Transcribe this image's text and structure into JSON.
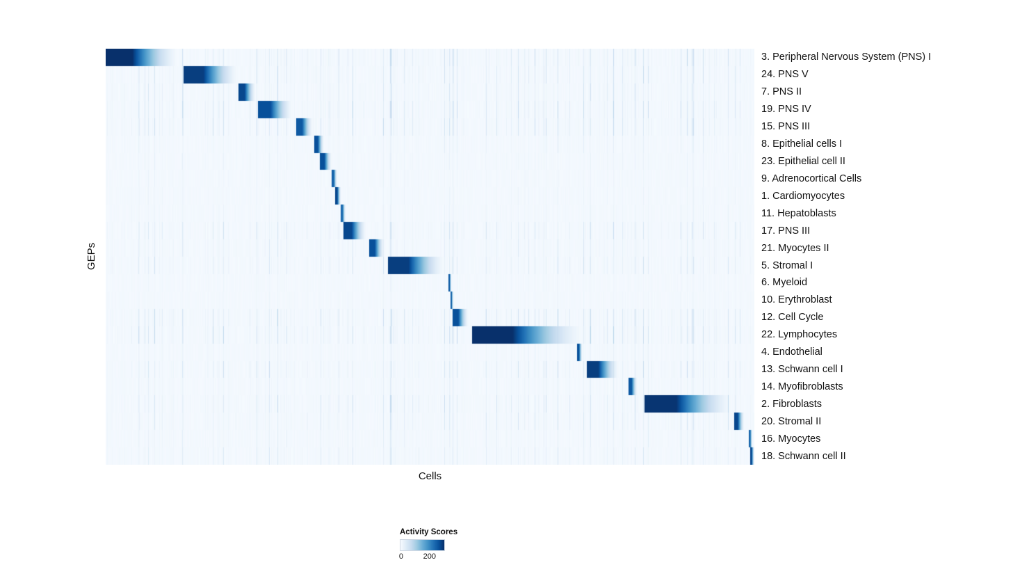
{
  "chart_data": {
    "type": "heatmap",
    "title": "",
    "xlabel": "Cells",
    "ylabel": "GEPs",
    "x_tick_labels_shown": false,
    "value_range": [
      0,
      290
    ],
    "colormap": "Blues",
    "colormap_stops": [
      "#f7fbff",
      "#deebf7",
      "#c6dbef",
      "#9ecae1",
      "#6baed6",
      "#4292c6",
      "#2171b5",
      "#08519c",
      "#08306b"
    ],
    "legend": {
      "title": "Activity Scores",
      "ticks": [
        {
          "label": "0",
          "pos": 0.03
        },
        {
          "label": "200",
          "pos": 0.68
        }
      ]
    },
    "rows": [
      {
        "label": "3. Peripheral Nervous System (PNS) I",
        "block": [
          0.0,
          0.116
        ],
        "peak": 290,
        "noise": 0.35
      },
      {
        "label": "24. PNS V",
        "block": [
          0.12,
          0.207
        ],
        "peak": 275,
        "noise": 0.3
      },
      {
        "label": "7. PNS II",
        "block": [
          0.204,
          0.232
        ],
        "peak": 265,
        "noise": 0.28
      },
      {
        "label": "19. PNS IV",
        "block": [
          0.234,
          0.29
        ],
        "peak": 255,
        "noise": 0.4
      },
      {
        "label": "15. PNS III",
        "block": [
          0.293,
          0.32
        ],
        "peak": 245,
        "noise": 0.35
      },
      {
        "label": "8. Epithelial cells I",
        "block": [
          0.321,
          0.337
        ],
        "peak": 255,
        "noise": 0.12
      },
      {
        "label": "23. Epithelial cell II",
        "block": [
          0.33,
          0.349
        ],
        "peak": 255,
        "noise": 0.1
      },
      {
        "label": "9. Adrenocortical Cells",
        "block": [
          0.348,
          0.357
        ],
        "peak": 235,
        "noise": 0.08
      },
      {
        "label": "1. Cardiomyocytes",
        "block": [
          0.353,
          0.363
        ],
        "peak": 265,
        "noise": 0.08
      },
      {
        "label": "11. Hepatoblasts",
        "block": [
          0.362,
          0.37
        ],
        "peak": 225,
        "noise": 0.08
      },
      {
        "label": "17. PNS III",
        "block": [
          0.366,
          0.403
        ],
        "peak": 265,
        "noise": 0.3
      },
      {
        "label": "21. Myocytes II",
        "block": [
          0.406,
          0.43
        ],
        "peak": 255,
        "noise": 0.2
      },
      {
        "label": "5. Stromal I",
        "block": [
          0.435,
          0.525
        ],
        "peak": 275,
        "noise": 0.25
      },
      {
        "label": "6. Myeloid",
        "block": [
          0.528,
          0.533
        ],
        "peak": 245,
        "noise": 0.06
      },
      {
        "label": "10. Erythroblast",
        "block": [
          0.531,
          0.536
        ],
        "peak": 235,
        "noise": 0.06
      },
      {
        "label": "12. Cell Cycle",
        "block": [
          0.534,
          0.56
        ],
        "peak": 255,
        "noise": 0.4
      },
      {
        "label": "22. Lymphocytes",
        "block": [
          0.564,
          0.743
        ],
        "peak": 290,
        "noise": 0.45
      },
      {
        "label": "4. Endothelial",
        "block": [
          0.726,
          0.735
        ],
        "peak": 255,
        "noise": 0.1
      },
      {
        "label": "13. Schwann cell I",
        "block": [
          0.741,
          0.793
        ],
        "peak": 275,
        "noise": 0.3
      },
      {
        "label": "14. Myofibroblasts",
        "block": [
          0.805,
          0.82
        ],
        "peak": 245,
        "noise": 0.15
      },
      {
        "label": "2. Fibroblasts",
        "block": [
          0.83,
          0.971
        ],
        "peak": 285,
        "noise": 0.35
      },
      {
        "label": "20. Stromal II",
        "block": [
          0.968,
          0.985
        ],
        "peak": 265,
        "noise": 0.25
      },
      {
        "label": "16. Myocytes",
        "block": [
          0.991,
          0.997
        ],
        "peak": 235,
        "noise": 0.15
      },
      {
        "label": "18. Schwann cell II",
        "block": [
          0.993,
          1.0
        ],
        "peak": 265,
        "noise": 0.2
      }
    ]
  }
}
